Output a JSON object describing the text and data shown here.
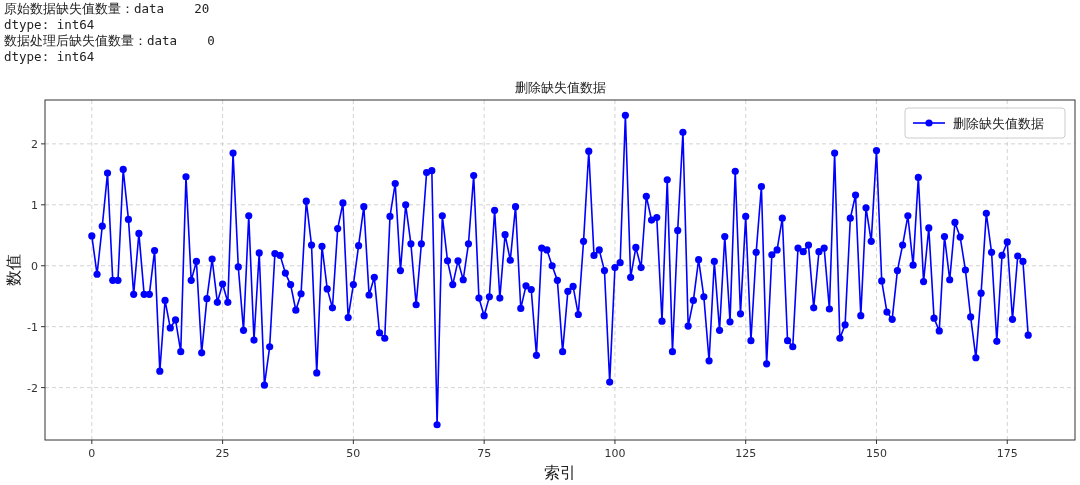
{
  "chart_data": {
    "type": "line",
    "title": "删除缺失值数据",
    "xlabel": "索引",
    "ylabel": "数值",
    "annotations": [
      "原始数据缺失值数量：data    20",
      "dtype: int64",
      "数据处理后缺失值数量：data    0",
      "dtype: int64"
    ],
    "x": [
      0,
      1,
      2,
      3,
      4,
      5,
      6,
      7,
      8,
      9,
      10,
      11,
      12,
      13,
      14,
      15,
      16,
      17,
      18,
      19,
      20,
      21,
      22,
      23,
      24,
      25,
      26,
      27,
      28,
      29,
      30,
      31,
      32,
      33,
      34,
      35,
      36,
      37,
      38,
      39,
      40,
      41,
      42,
      43,
      44,
      45,
      46,
      47,
      48,
      49,
      50,
      51,
      52,
      53,
      54,
      55,
      56,
      57,
      58,
      59,
      60,
      61,
      62,
      63,
      64,
      65,
      66,
      67,
      68,
      69,
      70,
      71,
      72,
      73,
      74,
      75,
      76,
      77,
      78,
      79,
      80,
      81,
      82,
      83,
      84,
      85,
      86,
      87,
      88,
      89,
      90,
      91,
      92,
      93,
      94,
      95,
      96,
      97,
      98,
      99,
      100,
      101,
      102,
      103,
      104,
      105,
      106,
      107,
      108,
      109,
      110,
      111,
      112,
      113,
      114,
      115,
      116,
      117,
      118,
      119,
      120,
      121,
      122,
      123,
      124,
      125,
      126,
      127,
      128,
      129,
      130,
      131,
      132,
      133,
      134,
      135,
      136,
      137,
      138,
      139,
      140,
      141,
      142,
      143,
      144,
      145,
      146,
      147,
      148,
      149,
      150,
      151,
      152,
      153,
      154,
      155,
      156,
      157,
      158,
      159,
      160,
      161,
      162,
      163,
      164,
      165,
      166,
      167,
      168,
      169,
      170,
      171,
      172,
      173,
      174,
      175,
      176,
      177,
      178,
      179
    ],
    "series": [
      {
        "name": "删除缺失值数据",
        "color": "#0000ff",
        "values": [
          0.49,
          -0.14,
          0.65,
          1.52,
          -0.24,
          -0.24,
          1.58,
          0.76,
          -0.47,
          0.53,
          -0.47,
          -0.47,
          0.25,
          -1.73,
          -0.57,
          -1.02,
          -0.89,
          -1.41,
          1.46,
          -0.24,
          0.07,
          -1.43,
          -0.54,
          0.11,
          -0.6,
          -0.3,
          -0.6,
          1.85,
          -0.02,
          -1.06,
          0.82,
          -1.22,
          0.21,
          -1.96,
          -1.33,
          0.2,
          0.17,
          -0.12,
          -0.31,
          -0.73,
          -0.46,
          1.06,
          0.34,
          -1.76,
          0.32,
          -0.38,
          -0.69,
          0.61,
          1.03,
          -0.85,
          -0.31,
          0.33,
          0.97,
          -0.48,
          -0.19,
          -1.1,
          -1.19,
          0.81,
          1.35,
          -0.08,
          1.0,
          0.36,
          -0.64,
          0.36,
          1.53,
          1.56,
          -2.61,
          0.82,
          0.08,
          -0.31,
          0.08,
          -0.23,
          0.36,
          1.48,
          -0.53,
          -0.82,
          -0.51,
          0.91,
          -0.53,
          0.51,
          0.09,
          0.97,
          -0.7,
          -0.33,
          -0.39,
          -1.47,
          0.29,
          0.26,
          0.0,
          -0.24,
          -1.41,
          -0.42,
          -0.34,
          -0.8,
          0.4,
          1.88,
          0.17,
          0.26,
          -0.08,
          -1.91,
          -0.03,
          0.05,
          2.47,
          -0.19,
          0.3,
          -0.03,
          1.14,
          0.75,
          0.79,
          -0.91,
          1.41,
          -1.41,
          0.58,
          2.19,
          -0.99,
          -0.57,
          0.1,
          -0.51,
          -1.56,
          0.07,
          -1.06,
          0.48,
          -0.92,
          1.55,
          -0.79,
          0.81,
          -1.23,
          0.22,
          1.3,
          -1.61,
          0.18,
          0.26,
          0.78,
          -1.23,
          -1.33,
          0.29,
          0.23,
          0.34,
          -0.69,
          0.23,
          0.29,
          -0.71,
          1.85,
          -1.19,
          -0.97,
          0.78,
          1.16,
          -0.82,
          0.95,
          0.4,
          1.89,
          -0.25,
          -0.76,
          -0.88,
          -0.08,
          0.34,
          0.82,
          0.01,
          1.45,
          -0.26,
          0.62,
          -0.86,
          -1.07,
          0.48,
          -0.23,
          0.71,
          0.47,
          -0.07,
          -0.84,
          -1.51,
          -0.45,
          0.86,
          0.22,
          -1.24,
          0.17,
          0.39,
          -0.88,
          0.16,
          0.07,
          -1.14
        ]
      }
    ],
    "xlim": [
      -8.95,
      187.95
    ],
    "ylim": [
      -2.86,
      2.72
    ],
    "xticks": [
      0,
      25,
      50,
      75,
      100,
      125,
      150,
      175
    ],
    "yticks": [
      -2,
      -1,
      0,
      1,
      2
    ],
    "grid": true,
    "legend": "top right",
    "marker": "circle",
    "line_style": "solid"
  }
}
